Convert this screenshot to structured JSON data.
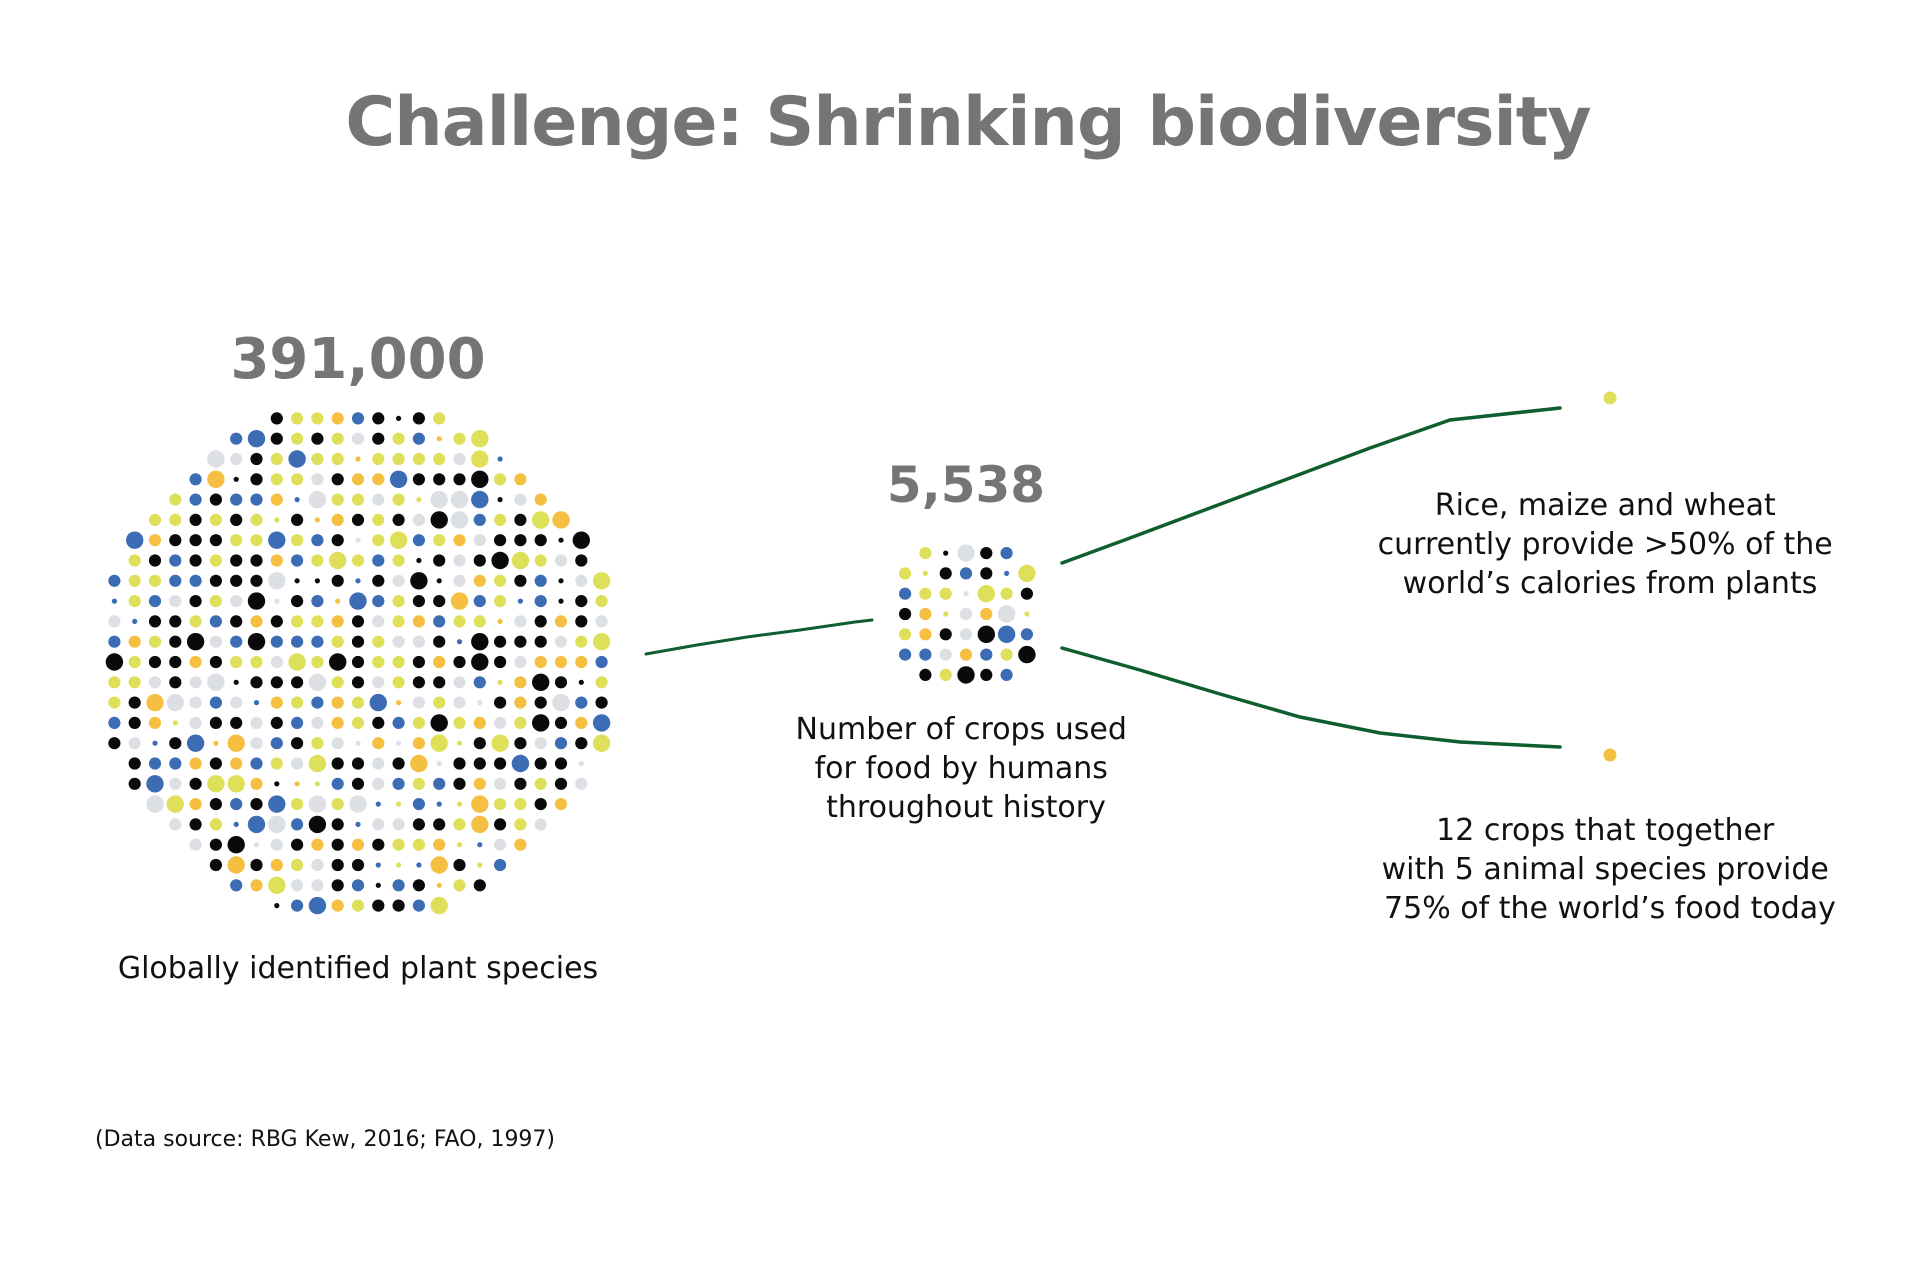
{
  "title": "Challenge: Shrinking biodiversity",
  "colors": {
    "number_gray": "#757575",
    "connector_green": "#0e5e2f",
    "dot_black": "#0a0a0a",
    "dot_yellow": "#dfe05a",
    "dot_orange": "#f5bf42",
    "dot_blue": "#3c6cb4",
    "dot_gray": "#dcdfe4"
  },
  "stages": [
    {
      "value": "391,000",
      "caption": [
        "Globally identified plant species"
      ],
      "icon": "dot-cluster-large"
    },
    {
      "value": "5,538",
      "caption": [
        "Number of crops used",
        "for food by humans",
        "throughout history"
      ],
      "icon": "dot-cluster-small"
    },
    {
      "value": "",
      "caption": [
        "Rice, maize and wheat",
        "currently provide >50% of the",
        "world’s calories from plants"
      ],
      "icon": "yellow-dot"
    },
    {
      "value": "",
      "caption": [
        "12 crops that together",
        "with 5 animal species provide",
        "75% of the world’s food today"
      ],
      "icon": "orange-dot"
    }
  ],
  "source": "(Data source: RBG Kew, 2016; FAO, 1997)"
}
